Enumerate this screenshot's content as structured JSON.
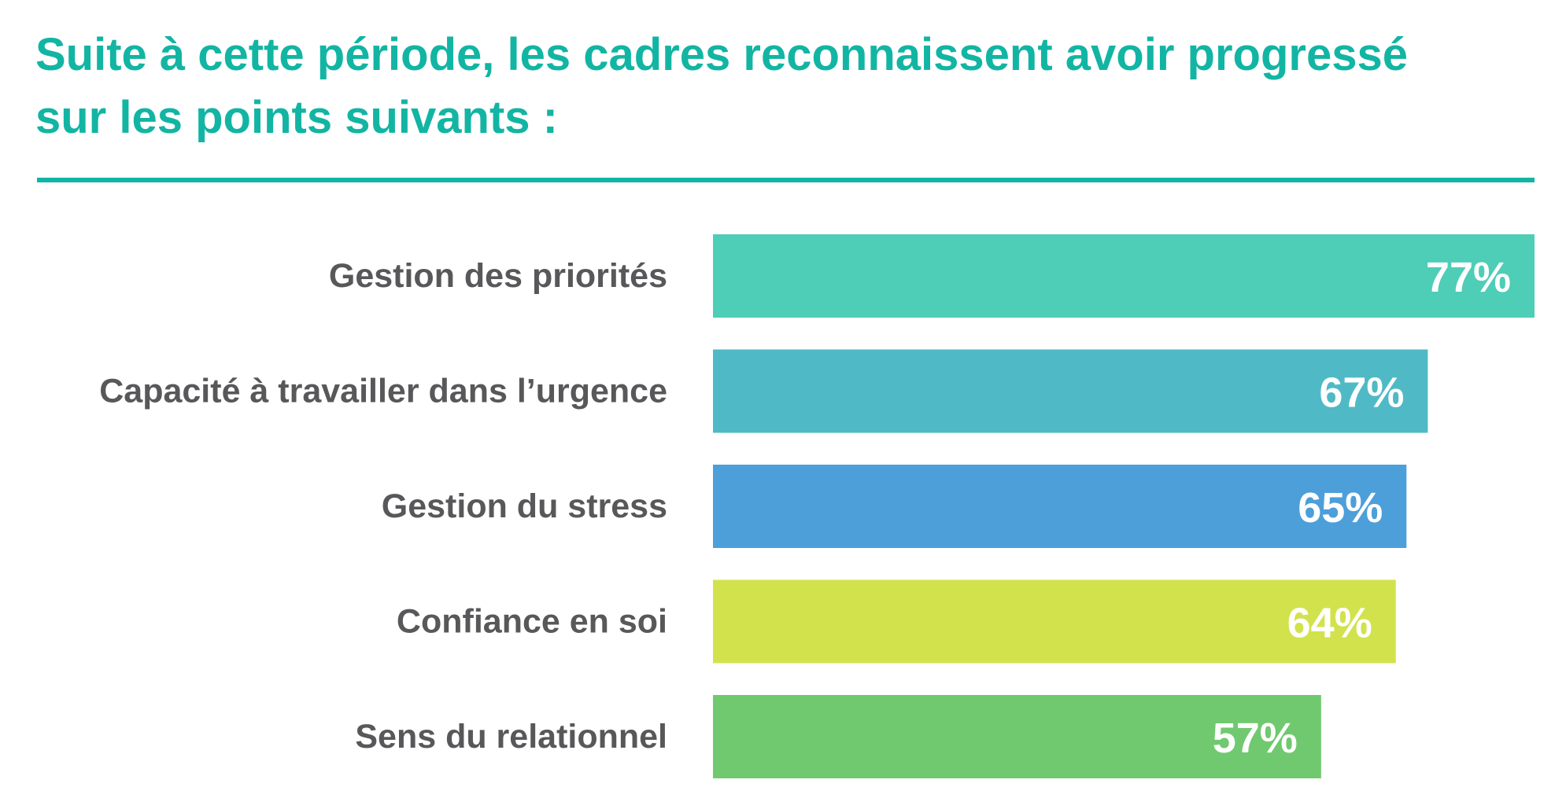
{
  "title_lines": [
    "Suite à cette période, les cadres reconnaissent avoir progressé",
    "sur les points suivants :"
  ],
  "colors": {
    "title": "#12b5a3",
    "category_text": "#58585a",
    "value_text": "#ffffff"
  },
  "chart_data": {
    "type": "bar",
    "orientation": "horizontal",
    "title": "Suite à cette période, les cadres reconnaissent avoir progressé sur les points suivants :",
    "categories": [
      "Gestion des priorités",
      "Capacité à travailler dans l’urgence",
      "Gestion du stress",
      "Confiance en soi",
      "Sens du relationnel"
    ],
    "values": [
      77,
      67,
      65,
      64,
      57
    ],
    "value_labels": [
      "77%",
      "67%",
      "65%",
      "64%",
      "57%"
    ],
    "bar_colors": [
      "#4ecdb7",
      "#4fbac6",
      "#4d9fda",
      "#d2e24d",
      "#70c96f"
    ],
    "unit": "%",
    "xlim": [
      0,
      77
    ],
    "grid": false,
    "legend": "none",
    "xlabel": "",
    "ylabel": ""
  }
}
